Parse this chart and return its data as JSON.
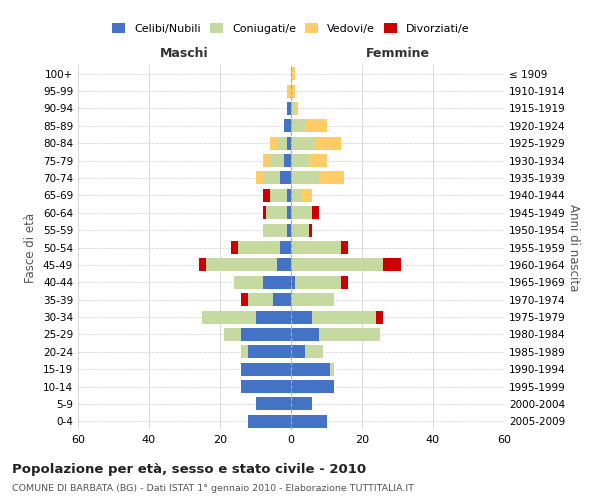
{
  "age_groups": [
    "0-4",
    "5-9",
    "10-14",
    "15-19",
    "20-24",
    "25-29",
    "30-34",
    "35-39",
    "40-44",
    "45-49",
    "50-54",
    "55-59",
    "60-64",
    "65-69",
    "70-74",
    "75-79",
    "80-84",
    "85-89",
    "90-94",
    "95-99",
    "100+"
  ],
  "birth_years": [
    "2005-2009",
    "2000-2004",
    "1995-1999",
    "1990-1994",
    "1985-1989",
    "1980-1984",
    "1975-1979",
    "1970-1974",
    "1965-1969",
    "1960-1964",
    "1955-1959",
    "1950-1954",
    "1945-1949",
    "1940-1944",
    "1935-1939",
    "1930-1934",
    "1925-1929",
    "1920-1924",
    "1915-1919",
    "1910-1914",
    "≤ 1909"
  ],
  "colors": {
    "celibi": "#4472C4",
    "coniugati": "#C5D9A0",
    "vedovi": "#FFCC66",
    "divorziati": "#CC0000"
  },
  "maschi": {
    "celibi": [
      12,
      10,
      14,
      14,
      12,
      14,
      10,
      5,
      8,
      4,
      3,
      1,
      1,
      1,
      3,
      2,
      1,
      2,
      1,
      0,
      0
    ],
    "coniugati": [
      0,
      0,
      0,
      0,
      2,
      5,
      15,
      7,
      8,
      20,
      12,
      7,
      6,
      5,
      5,
      4,
      3,
      0,
      0,
      0,
      0
    ],
    "vedovi": [
      0,
      0,
      0,
      0,
      0,
      0,
      0,
      0,
      0,
      2,
      0,
      0,
      0,
      1,
      2,
      2,
      2,
      0,
      0,
      1,
      0
    ],
    "divorziati": [
      0,
      0,
      0,
      0,
      0,
      0,
      0,
      2,
      0,
      2,
      2,
      0,
      1,
      2,
      0,
      0,
      0,
      0,
      0,
      0,
      0
    ]
  },
  "femmine": {
    "celibi": [
      10,
      6,
      12,
      11,
      4,
      8,
      6,
      0,
      1,
      0,
      0,
      0,
      0,
      0,
      0,
      0,
      0,
      0,
      0,
      0,
      0
    ],
    "coniugati": [
      0,
      0,
      0,
      1,
      5,
      17,
      18,
      12,
      13,
      26,
      14,
      5,
      6,
      3,
      8,
      5,
      7,
      4,
      1,
      0,
      0
    ],
    "vedovi": [
      0,
      0,
      0,
      0,
      0,
      0,
      0,
      0,
      0,
      3,
      2,
      1,
      1,
      3,
      7,
      5,
      7,
      6,
      1,
      1,
      1
    ],
    "divorziati": [
      0,
      0,
      0,
      0,
      0,
      0,
      2,
      0,
      2,
      5,
      2,
      1,
      2,
      0,
      0,
      0,
      0,
      0,
      0,
      0,
      0
    ]
  },
  "xlim": 60,
  "title": "Popolazione per età, sesso e stato civile - 2010",
  "subtitle": "COMUNE DI BARBATA (BG) - Dati ISTAT 1° gennaio 2010 - Elaborazione TUTTITALIA.IT",
  "ylabel_left": "Fasce di età",
  "ylabel_right": "Anni di nascita",
  "xlabel_left": "Maschi",
  "xlabel_right": "Femmine",
  "background_color": "#FFFFFF",
  "grid_color": "#CCCCCC",
  "legend_labels": [
    "Celibi/Nubili",
    "Coniugati/e",
    "Vedovi/e",
    "Divorziati/e"
  ]
}
